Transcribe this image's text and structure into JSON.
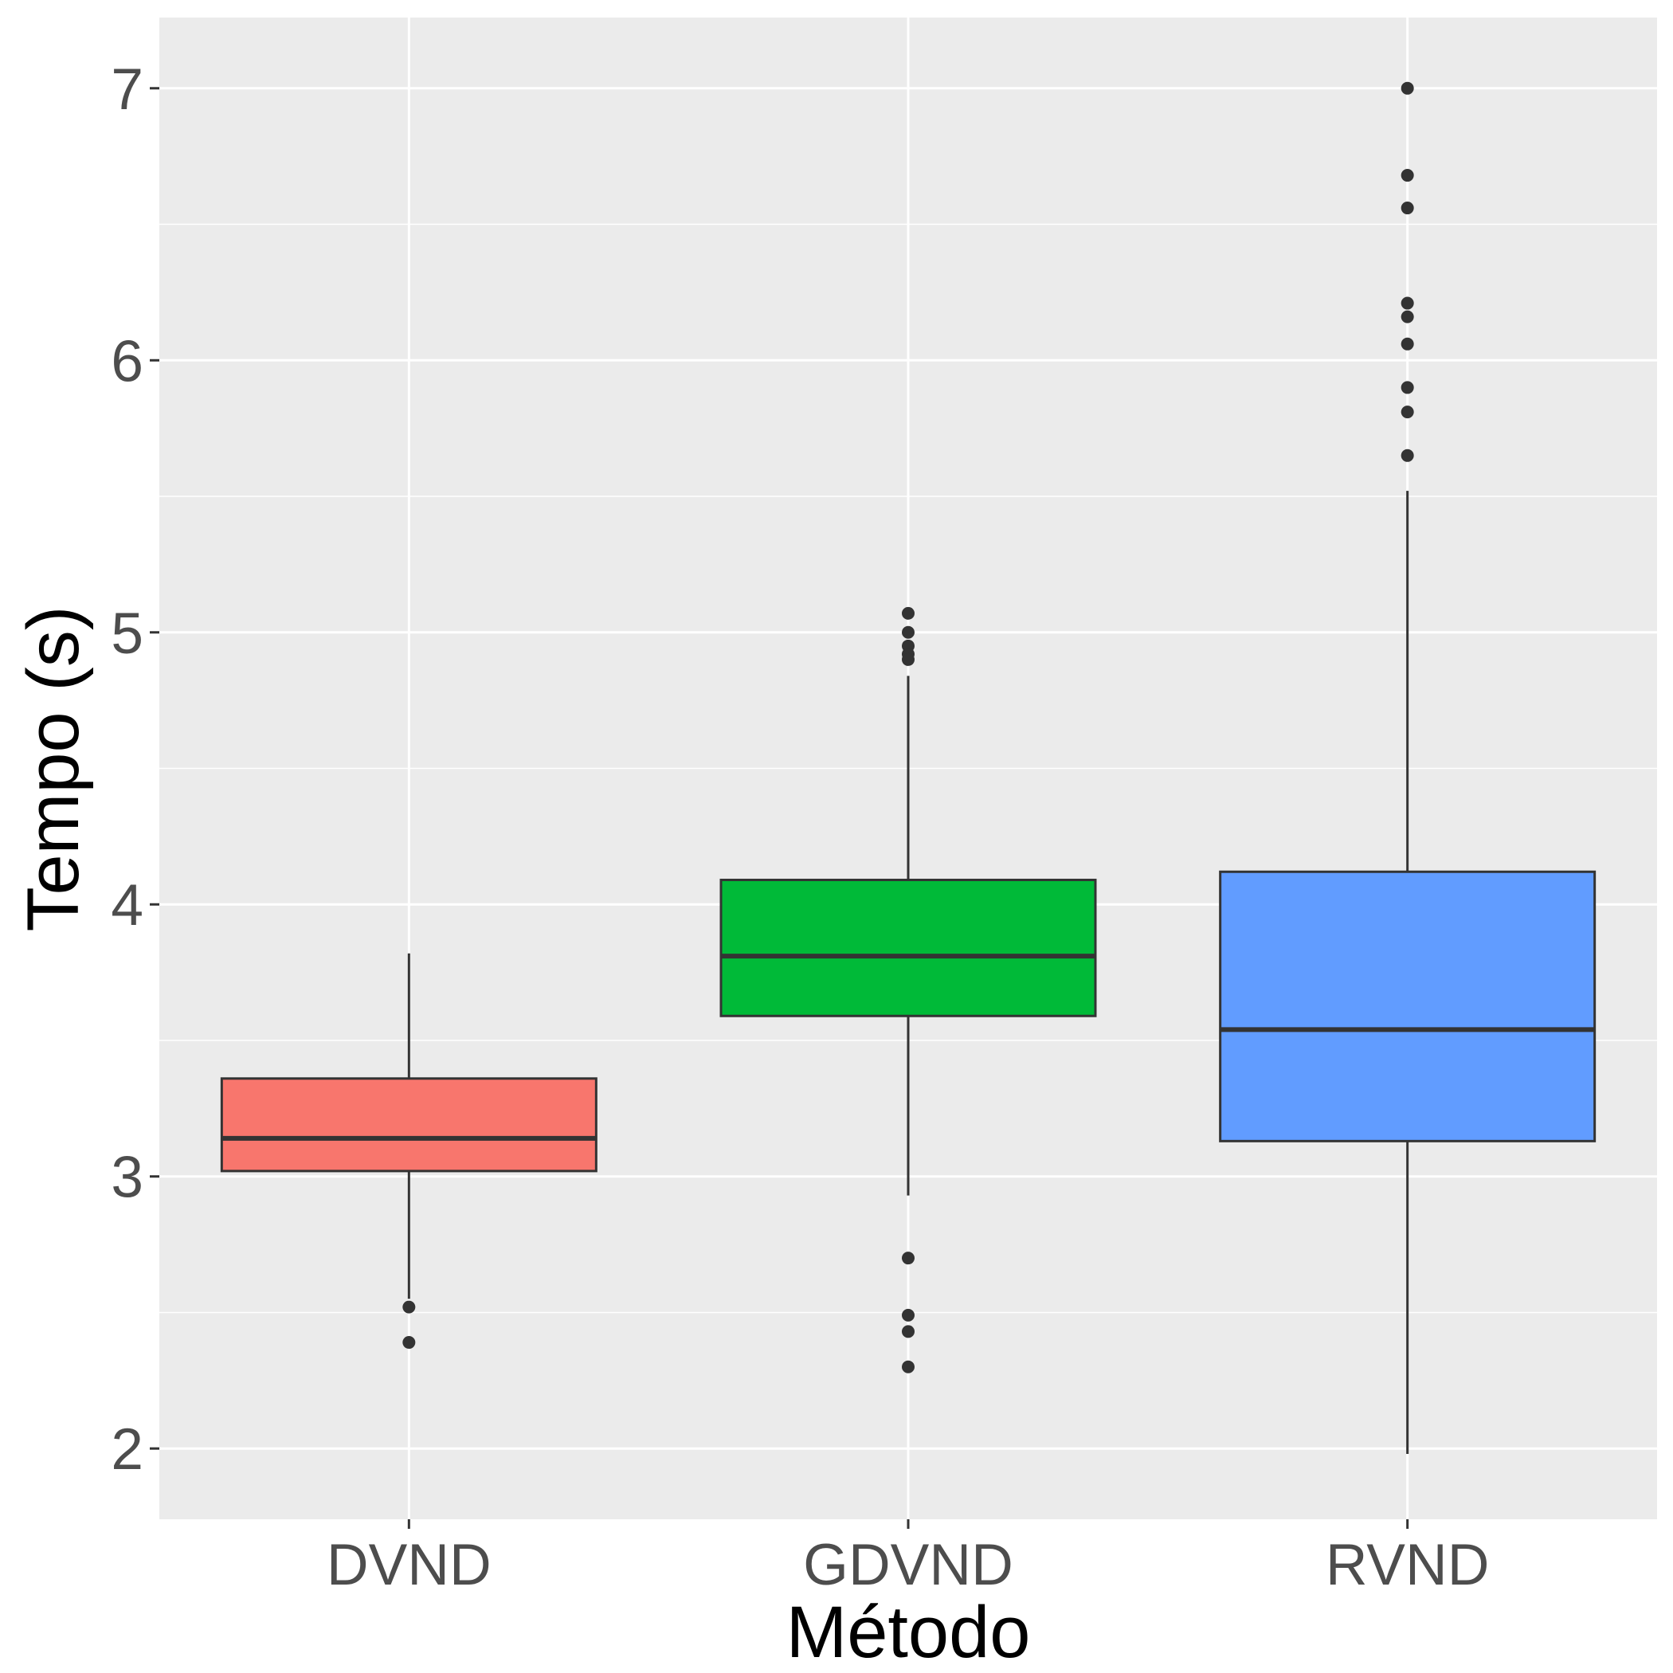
{
  "chart_data": {
    "type": "boxplot",
    "title": "",
    "xlabel": "Método",
    "ylabel": "Tempo (s)",
    "ylim": [
      1.74,
      7.26
    ],
    "yticks": [
      2,
      3,
      4,
      5,
      6,
      7
    ],
    "y_minor_ticks": [
      2.5,
      3.5,
      4.5,
      5.5,
      6.5
    ],
    "grid": true,
    "legend": "none",
    "categories": [
      "DVND",
      "GDVND",
      "RVND"
    ],
    "series": [
      {
        "category": "DVND",
        "color": "#F8766D",
        "whisker_low": 2.55,
        "q1": 3.02,
        "median": 3.14,
        "q3": 3.36,
        "whisker_high": 3.82,
        "outliers": [
          2.52,
          2.39
        ]
      },
      {
        "category": "GDVND",
        "color": "#00BA38",
        "whisker_low": 2.93,
        "q1": 3.59,
        "median": 3.81,
        "q3": 4.09,
        "whisker_high": 4.84,
        "outliers": [
          5.07,
          5.0,
          4.95,
          4.92,
          4.9,
          2.7,
          2.49,
          2.43,
          2.3
        ]
      },
      {
        "category": "RVND",
        "color": "#619CFF",
        "whisker_low": 1.98,
        "q1": 3.13,
        "median": 3.54,
        "q3": 4.12,
        "whisker_high": 5.52,
        "outliers": [
          7.0,
          6.68,
          6.56,
          6.21,
          6.16,
          6.06,
          5.9,
          5.81,
          5.65
        ]
      }
    ]
  }
}
